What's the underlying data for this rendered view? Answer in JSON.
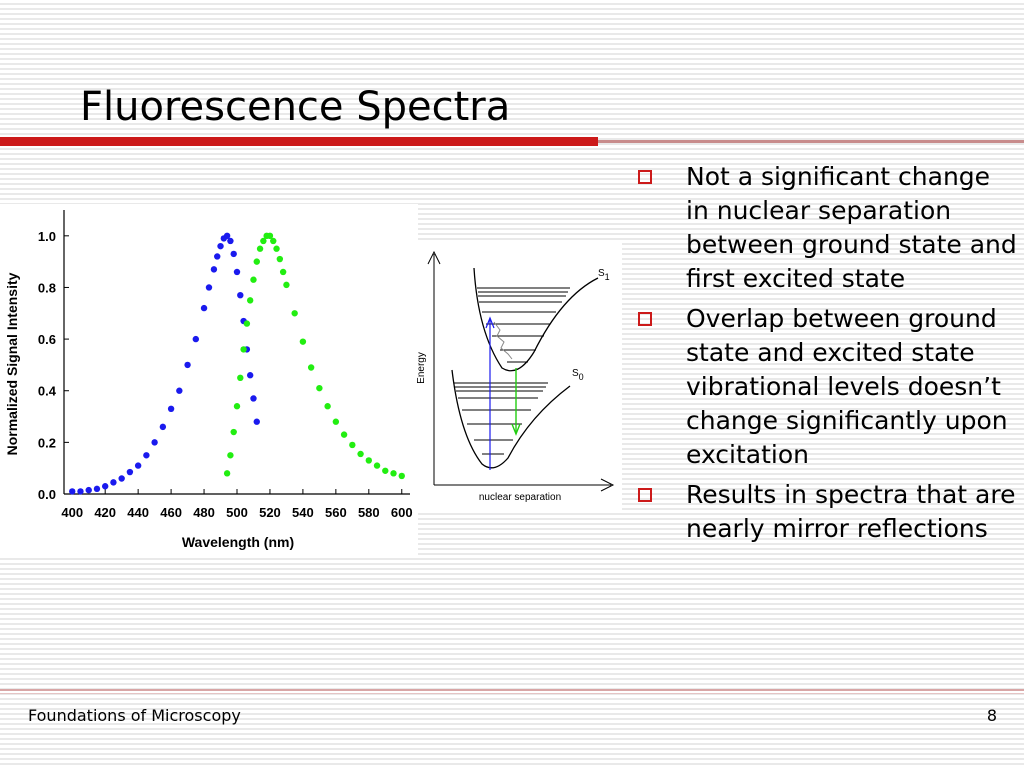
{
  "slide": {
    "title": "Fluorescence Spectra",
    "footer": "Foundations of Microscopy",
    "page_number": "8"
  },
  "colors": {
    "accent": "#cc1a1a",
    "excitation": "#1a1aee",
    "emission": "#22ee11"
  },
  "bullets": [
    "Not a significant change in nuclear separation between ground state and first excited state",
    "Overlap between ground state and excited state vibrational levels doesn’t change significantly upon excitation",
    "Results in spectra that are nearly mirror reflections"
  ],
  "chart_data": {
    "type": "scatter",
    "title": "",
    "xlabel": "Wavelength (nm)",
    "ylabel": "Normalized Signal Intensity",
    "xlim": [
      395,
      605
    ],
    "ylim": [
      0,
      1.1
    ],
    "xticks": [
      "400",
      "420",
      "440",
      "460",
      "480",
      "500",
      "520",
      "540",
      "560",
      "580",
      "600"
    ],
    "yticks": [
      "0.0",
      "0.2",
      "0.4",
      "0.6",
      "0.8",
      "1.0"
    ],
    "grid": false,
    "series": [
      {
        "color": "#1a1aee",
        "x": [
          400,
          405,
          410,
          415,
          420,
          425,
          430,
          435,
          440,
          445,
          450,
          455,
          460,
          465,
          470,
          475,
          480,
          483,
          486,
          488,
          490,
          492,
          494,
          496,
          498,
          500,
          502,
          504,
          506,
          508,
          510,
          512
        ],
        "y": [
          0.01,
          0.01,
          0.015,
          0.02,
          0.03,
          0.045,
          0.06,
          0.085,
          0.11,
          0.15,
          0.2,
          0.26,
          0.33,
          0.4,
          0.5,
          0.6,
          0.72,
          0.8,
          0.87,
          0.92,
          0.96,
          0.99,
          1.0,
          0.98,
          0.93,
          0.86,
          0.77,
          0.67,
          0.56,
          0.46,
          0.37,
          0.28
        ]
      },
      {
        "color": "#22ee11",
        "x": [
          494,
          496,
          498,
          500,
          502,
          504,
          506,
          508,
          510,
          512,
          514,
          516,
          518,
          520,
          522,
          524,
          526,
          528,
          530,
          535,
          540,
          545,
          550,
          555,
          560,
          565,
          570,
          575,
          580,
          585,
          590,
          595,
          600
        ],
        "y": [
          0.08,
          0.15,
          0.24,
          0.34,
          0.45,
          0.56,
          0.66,
          0.75,
          0.83,
          0.9,
          0.95,
          0.98,
          1.0,
          1.0,
          0.98,
          0.95,
          0.91,
          0.86,
          0.81,
          0.7,
          0.59,
          0.49,
          0.41,
          0.34,
          0.28,
          0.23,
          0.19,
          0.155,
          0.13,
          0.11,
          0.09,
          0.08,
          0.07
        ]
      }
    ]
  },
  "energy_diagram": {
    "y_axis_label": "Energy",
    "x_axis_label": "nuclear separation",
    "upper_state": "S",
    "upper_state_sub": "1",
    "lower_state": "S",
    "lower_state_sub": "0"
  }
}
